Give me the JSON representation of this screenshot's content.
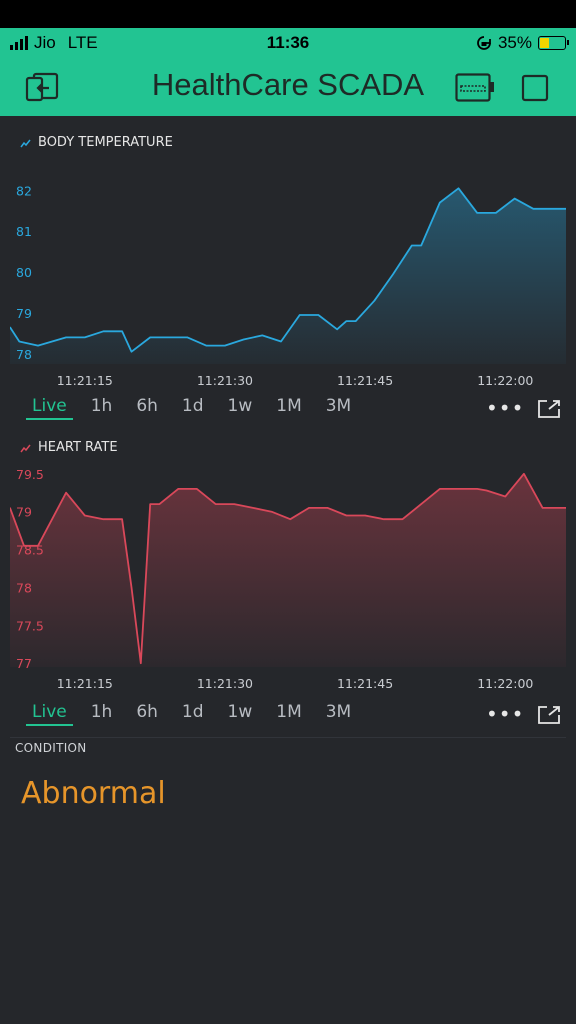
{
  "status_bar": {
    "carrier": "Jio",
    "network": "LTE",
    "time": "11:36",
    "battery_percent": "35%",
    "battery_level": 0.35
  },
  "header": {
    "title": "HealthCare SCADA",
    "left_icon": "exit-icon",
    "right_icons": [
      "device-icon",
      "square-icon"
    ]
  },
  "colors": {
    "accent": "#22c492",
    "temperature_line": "#2aa8de",
    "heart_line": "#d9485a",
    "condition": "#e6952a",
    "background": "#25272b"
  },
  "body_temperature": {
    "label": "BODY TEMPERATURE",
    "ranges": [
      "Live",
      "1h",
      "6h",
      "1d",
      "1w",
      "1M",
      "3M"
    ],
    "active_range": "Live",
    "chart_data": {
      "type": "area",
      "x_tick_labels": [
        "11:21:15",
        "11:21:30",
        "11:21:45",
        "11:22:00"
      ],
      "y_tick_labels": [
        "82",
        "81",
        "80",
        "79",
        "78"
      ],
      "x_ticks": [
        15,
        30,
        45,
        60
      ],
      "y_ticks": [
        82,
        81,
        80,
        79,
        78
      ],
      "xlim": [
        7,
        66.5
      ],
      "ylim": [
        77.75,
        82.45
      ],
      "color": "#2aa8de",
      "x": [
        7,
        8,
        10,
        13,
        15,
        17,
        19,
        20,
        22,
        24,
        26,
        28,
        30,
        32,
        34,
        36,
        38,
        40,
        42,
        43,
        44,
        46,
        48,
        50,
        51,
        53,
        55,
        57,
        59,
        61,
        63,
        65,
        66.5
      ],
      "y": [
        78.65,
        78.3,
        78.2,
        78.4,
        78.4,
        78.55,
        78.55,
        78.05,
        78.4,
        78.4,
        78.4,
        78.2,
        78.2,
        78.35,
        78.45,
        78.3,
        78.95,
        78.95,
        78.6,
        78.8,
        78.8,
        79.3,
        79.95,
        80.65,
        80.65,
        81.7,
        82.05,
        81.45,
        81.45,
        81.8,
        81.55,
        81.55,
        81.55
      ]
    }
  },
  "heart_rate": {
    "label": "HEART RATE",
    "ranges": [
      "Live",
      "1h",
      "6h",
      "1d",
      "1w",
      "1M",
      "3M"
    ],
    "active_range": "Live",
    "chart_data": {
      "type": "area",
      "x_tick_labels": [
        "11:21:15",
        "11:21:30",
        "11:21:45",
        "11:22:00"
      ],
      "y_tick_labels": [
        "79.5",
        "79",
        "78.5",
        "78",
        "77.5",
        "77"
      ],
      "x_ticks": [
        15,
        30,
        45,
        60
      ],
      "y_ticks": [
        79.5,
        79,
        78.5,
        78,
        77.5,
        77
      ],
      "xlim": [
        7,
        66.5
      ],
      "ylim": [
        76.95,
        79.55
      ],
      "color": "#d9485a",
      "x": [
        7,
        8.5,
        10,
        13,
        15,
        17,
        19,
        20,
        21,
        22,
        23,
        25,
        27,
        29,
        31,
        33,
        35,
        37,
        39,
        41,
        43,
        45,
        47,
        49,
        51,
        53,
        55,
        57,
        58,
        60,
        62,
        64,
        66.5
      ],
      "y": [
        79.05,
        78.55,
        78.55,
        79.25,
        78.95,
        78.9,
        78.9,
        78.0,
        77.0,
        79.1,
        79.1,
        79.3,
        79.3,
        79.1,
        79.1,
        79.05,
        79.0,
        78.9,
        79.05,
        79.05,
        78.95,
        78.95,
        78.9,
        78.9,
        79.1,
        79.3,
        79.3,
        79.3,
        79.28,
        79.2,
        79.5,
        79.05,
        79.05
      ]
    }
  },
  "condition": {
    "label": "CONDITION",
    "value": "Abnormal"
  }
}
